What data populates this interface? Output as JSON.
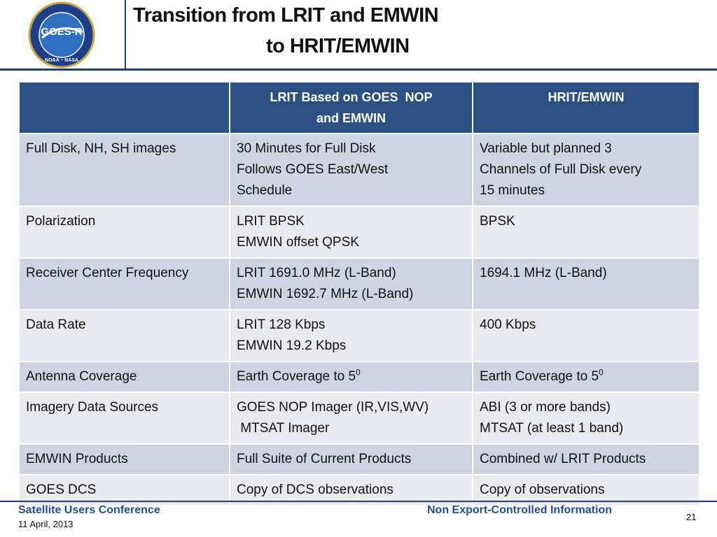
{
  "header": {
    "title_line1": "Transition from LRIT and EMWIN",
    "title_line2": "to HRIT/EMWIN",
    "logo_text": "GOES-R",
    "logo_subtext": "NOAA – NASA"
  },
  "table": {
    "columns": [
      "",
      [
        "LRIT Based on GOES  NOP",
        "and EMWIN"
      ],
      [
        "HRIT/EMWIN"
      ]
    ],
    "rows": [
      [
        [
          "Full Disk, NH, SH images"
        ],
        [
          "30 Minutes for Full Disk",
          "Follows GOES East/West",
          "Schedule"
        ],
        [
          "Variable but planned 3",
          "Channels of Full Disk every",
          "15 minutes"
        ]
      ],
      [
        [
          "Polarization"
        ],
        [
          "LRIT BPSK",
          "EMWIN offset QPSK"
        ],
        [
          "BPSK"
        ]
      ],
      [
        [
          "Receiver Center Frequency"
        ],
        [
          "LRIT 1691.0 MHz (L-Band)",
          "EMWIN 1692.7 MHz (L-Band)"
        ],
        [
          "1694.1 MHz (L-Band)"
        ]
      ],
      [
        [
          "Data Rate"
        ],
        [
          "LRIT 128 Kbps",
          "EMWIN 19.2 Kbps"
        ],
        [
          "400 Kbps"
        ]
      ],
      [
        [
          "Antenna Coverage"
        ],
        {
          "text": "Earth Coverage to 5",
          "sup": "0"
        },
        {
          "text": "Earth Coverage to 5",
          "sup": "0"
        }
      ],
      [
        [
          "Imagery Data Sources"
        ],
        [
          "GOES NOP Imager (IR,VIS,WV)",
          " MTSAT Imager"
        ],
        [
          "ABI (3 or more bands)",
          "MTSAT (at least 1 band)"
        ]
      ],
      [
        [
          "EMWIN Products"
        ],
        [
          "Full Suite of Current Products"
        ],
        [
          "Combined w/ LRIT Products"
        ]
      ],
      [
        [
          "GOES DCS"
        ],
        [
          "Copy of DCS observations"
        ],
        [
          "Copy of observations"
        ]
      ]
    ]
  },
  "footer": {
    "conference": "Satellite Users Conference",
    "date": "11 April, 2013",
    "notice": "Non Export-Controlled Information",
    "page": "21"
  }
}
